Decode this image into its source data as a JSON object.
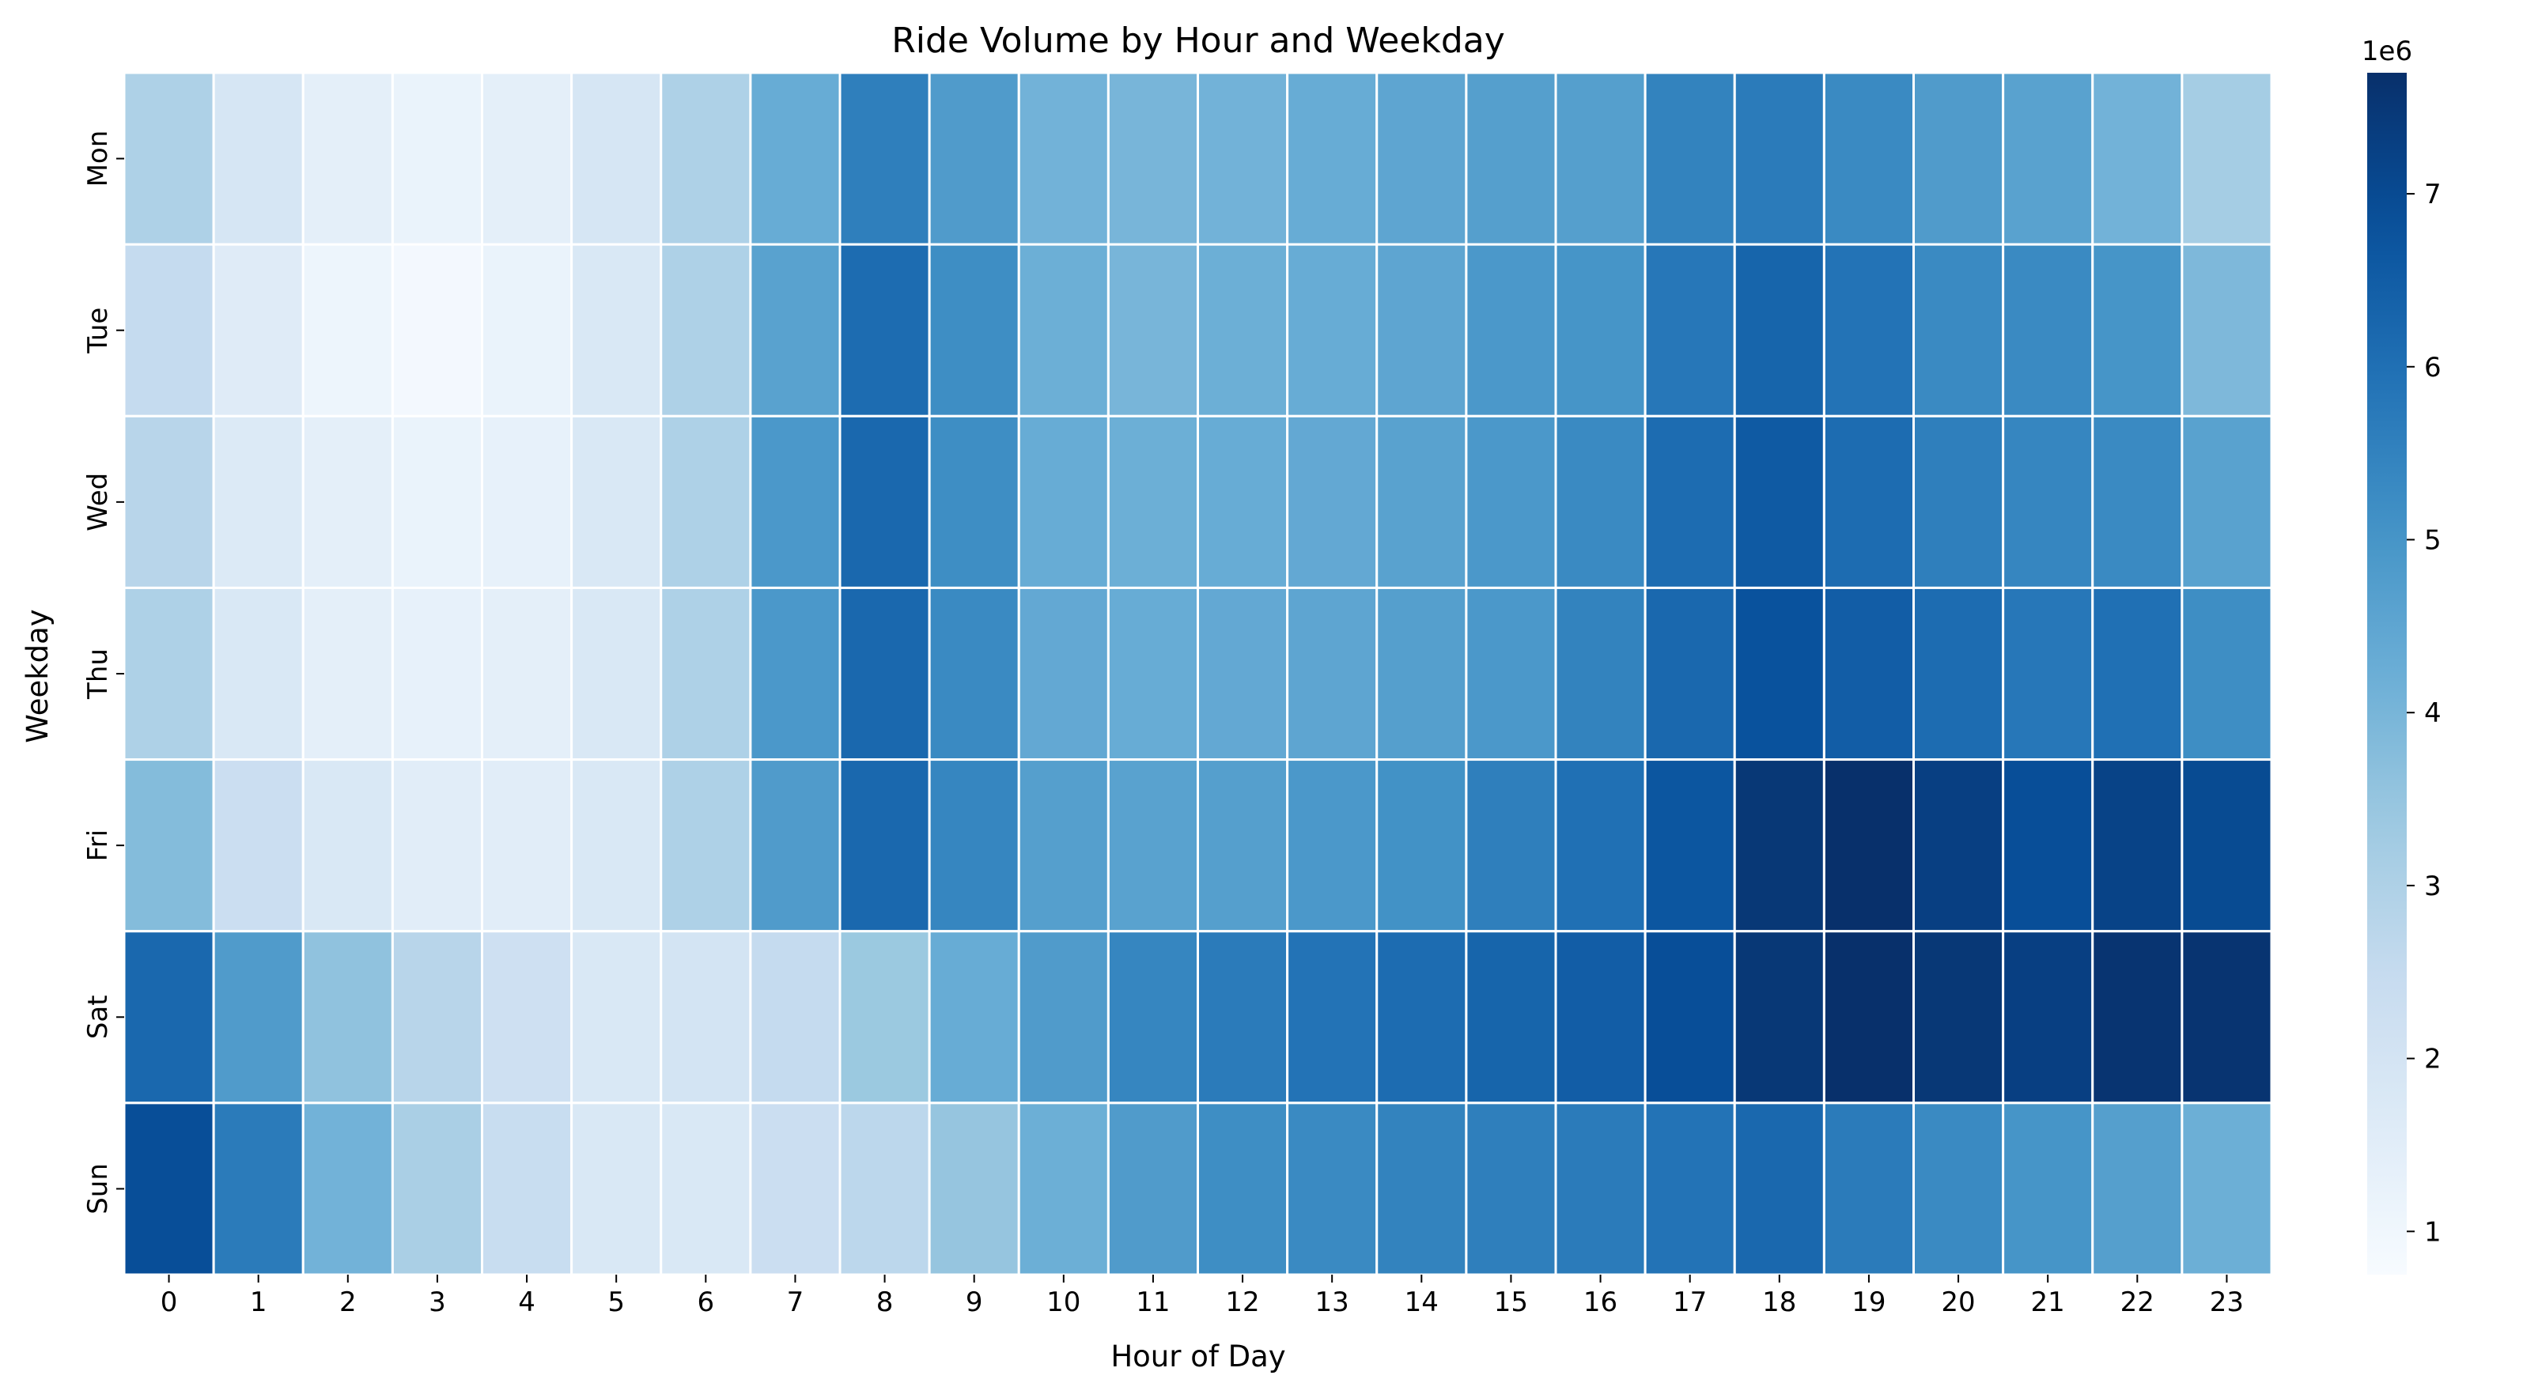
{
  "chart_data": {
    "type": "heatmap",
    "title": "Ride Volume by Hour and Weekday",
    "xlabel": "Hour of Day",
    "ylabel": "Weekday",
    "x": [
      "0",
      "1",
      "2",
      "3",
      "4",
      "5",
      "6",
      "7",
      "8",
      "9",
      "10",
      "11",
      "12",
      "13",
      "14",
      "15",
      "16",
      "17",
      "18",
      "19",
      "20",
      "21",
      "22",
      "23"
    ],
    "y": [
      "Mon",
      "Tue",
      "Wed",
      "Thu",
      "Fri",
      "Sat",
      "Sun"
    ],
    "values": [
      [
        3.0,
        1.9,
        1.4,
        1.2,
        1.4,
        1.9,
        3.0,
        4.3,
        5.6,
        4.8,
        4.1,
        4.0,
        4.1,
        4.3,
        4.5,
        4.7,
        4.7,
        5.5,
        5.7,
        5.3,
        4.8,
        4.6,
        4.1,
        3.2
      ],
      [
        2.5,
        1.6,
        1.1,
        0.9,
        1.2,
        1.8,
        3.0,
        4.6,
        6.1,
        5.2,
        4.2,
        4.0,
        4.2,
        4.3,
        4.5,
        4.9,
        5.0,
        5.8,
        6.3,
        5.9,
        5.3,
        5.3,
        5.0,
        3.9
      ],
      [
        2.8,
        1.7,
        1.4,
        1.2,
        1.3,
        1.8,
        3.0,
        4.9,
        6.2,
        5.2,
        4.3,
        4.2,
        4.3,
        4.4,
        4.6,
        4.9,
        5.3,
        6.1,
        6.6,
        6.1,
        5.6,
        5.4,
        5.3,
        4.6
      ],
      [
        3.0,
        1.8,
        1.4,
        1.3,
        1.4,
        1.8,
        3.0,
        4.9,
        6.2,
        5.3,
        4.4,
        4.3,
        4.4,
        4.5,
        4.7,
        4.9,
        5.5,
        6.2,
        6.8,
        6.5,
        6.1,
        5.8,
        6.0,
        5.2
      ],
      [
        3.8,
        2.3,
        1.8,
        1.5,
        1.5,
        1.8,
        3.0,
        4.8,
        6.2,
        5.4,
        4.7,
        4.6,
        4.7,
        4.9,
        5.1,
        5.6,
        6.0,
        6.7,
        7.5,
        7.7,
        7.3,
        6.9,
        7.2,
        7.0
      ],
      [
        6.2,
        4.8,
        3.6,
        2.8,
        2.2,
        1.8,
        2.0,
        2.5,
        3.4,
        4.3,
        4.8,
        5.4,
        5.7,
        5.9,
        6.1,
        6.3,
        6.5,
        6.9,
        7.5,
        7.7,
        7.5,
        7.3,
        7.6,
        7.6
      ],
      [
        6.9,
        5.7,
        4.1,
        3.1,
        2.4,
        1.8,
        1.8,
        2.3,
        2.7,
        3.5,
        4.2,
        4.8,
        5.2,
        5.3,
        5.5,
        5.6,
        5.7,
        5.9,
        6.2,
        5.7,
        5.3,
        5.0,
        4.7,
        4.2
      ]
    ],
    "value_unit_scale": "1e6",
    "colorbar": {
      "label": "1e6",
      "ticks": [
        "1",
        "2",
        "3",
        "4",
        "5",
        "6",
        "7"
      ],
      "range": [
        0.75,
        7.7
      ],
      "colormap": "Blues"
    },
    "cell_separator_color": "#ffffff"
  }
}
